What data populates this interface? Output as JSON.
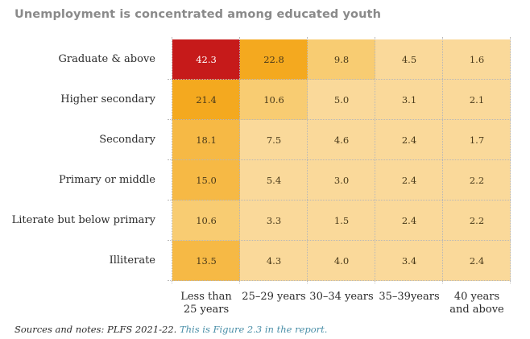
{
  "chart_data": {
    "type": "heatmap",
    "title": "Unemployment is concentrated among educated youth",
    "rows": [
      "Graduate & above",
      "Higher secondary",
      "Secondary",
      "Primary or middle",
      "Literate but below primary",
      "Illiterate"
    ],
    "columns": [
      "Less than\n25 years",
      "25–29 years",
      "30–34 years",
      "35–39years",
      "40 years\nand above"
    ],
    "values": [
      [
        42.3,
        22.8,
        9.8,
        4.5,
        1.6
      ],
      [
        21.4,
        10.6,
        5.0,
        3.1,
        2.1
      ],
      [
        18.1,
        7.5,
        4.6,
        2.4,
        1.7
      ],
      [
        15.0,
        5.4,
        3.0,
        2.4,
        2.2
      ],
      [
        10.6,
        3.3,
        1.5,
        2.4,
        2.2
      ],
      [
        13.5,
        4.3,
        4.0,
        3.4,
        2.4
      ]
    ],
    "value_format": "0.0",
    "color_scale": [
      "#fad99a",
      "#f8cc72",
      "#f6b945",
      "#f4a91f",
      "#c61a1a"
    ],
    "grid": "dotted"
  },
  "footer": {
    "source": "Sources and notes: PLFS 2021-22.",
    "reference": "This is Figure 2.3 in the report."
  }
}
